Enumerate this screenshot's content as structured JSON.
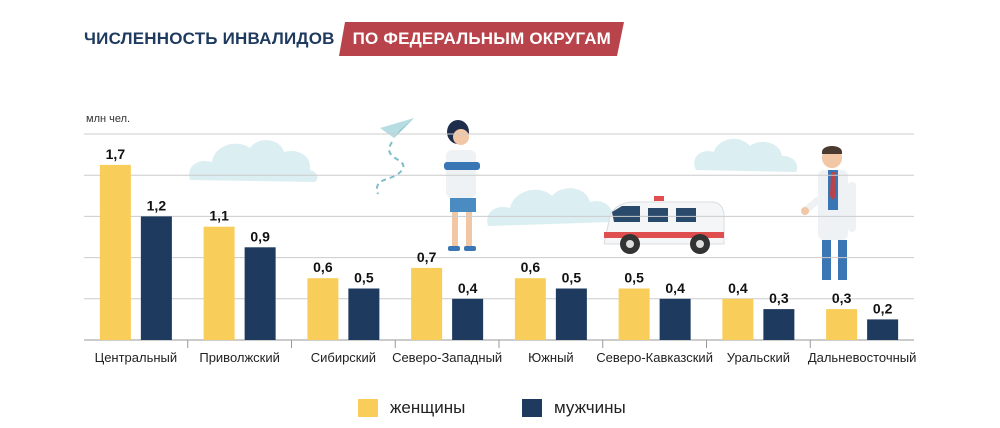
{
  "title": {
    "main": "ЧИСЛЕННОСТЬ ИНВАЛИДОВ",
    "tag": "ПО ФЕДЕРАЛЬНЫМ ОКРУГАМ"
  },
  "colors": {
    "women": "#f9cd5a",
    "men": "#1f3a5f",
    "tag_bg": "#b8434a",
    "title_text": "#1f3a5f",
    "grid": "#cccccc"
  },
  "chart_data": {
    "type": "bar",
    "ylabel": "млн чел.",
    "ylim": [
      0,
      2
    ],
    "grid": true,
    "categories": [
      "Центральный",
      "Приволжский",
      "Сибирский",
      "Северо-Западный",
      "Южный",
      "Северо-Кавказский",
      "Уральский",
      "Дальневосточный"
    ],
    "series": [
      {
        "name": "женщины",
        "values": [
          1.7,
          1.1,
          0.6,
          0.7,
          0.6,
          0.5,
          0.4,
          0.3
        ],
        "labels": [
          "1,7",
          "1,1",
          "0,6",
          "0,7",
          "0,6",
          "0,5",
          "0,4",
          "0,3"
        ]
      },
      {
        "name": "мужчины",
        "values": [
          1.2,
          0.9,
          0.5,
          0.4,
          0.5,
          0.4,
          0.3,
          0.2
        ],
        "labels": [
          "1,2",
          "0,9",
          "0,5",
          "0,4",
          "0,5",
          "0,4",
          "0,3",
          "0,2"
        ]
      }
    ],
    "legend_position": "bottom"
  },
  "illustrations": [
    "cloud",
    "paper-plane",
    "nurse",
    "ambulance",
    "doctor"
  ]
}
